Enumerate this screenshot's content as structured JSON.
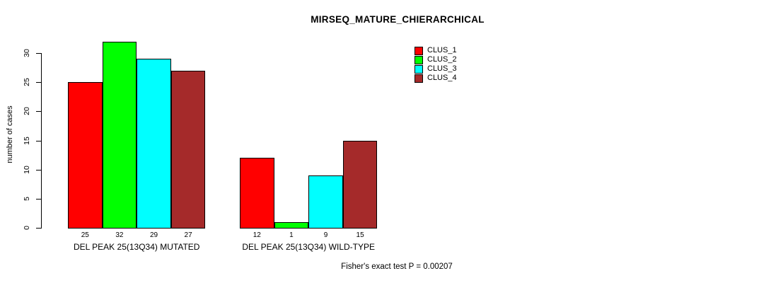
{
  "chart_data": {
    "type": "bar",
    "title": "MIRSEQ_MATURE_CHIERARCHICAL",
    "ylabel": "number of cases",
    "xlabel": "",
    "ylim": [
      0,
      32
    ],
    "yticks": [
      0,
      5,
      10,
      15,
      20,
      25,
      30
    ],
    "grid": false,
    "legend_position": "top-right",
    "categories": [
      "DEL PEAK 25(13Q34) MUTATED",
      "DEL PEAK 25(13Q34) WILD-TYPE"
    ],
    "series": [
      {
        "name": "CLUS_1",
        "color": "#ff0000",
        "values": [
          25,
          12
        ]
      },
      {
        "name": "CLUS_2",
        "color": "#00ff00",
        "values": [
          32,
          1
        ]
      },
      {
        "name": "CLUS_3",
        "color": "#00ffff",
        "values": [
          29,
          9
        ]
      },
      {
        "name": "CLUS_4",
        "color": "#a52a2a",
        "values": [
          27,
          15
        ]
      }
    ],
    "annotation": "Fisher's exact test P = 0.00207"
  }
}
